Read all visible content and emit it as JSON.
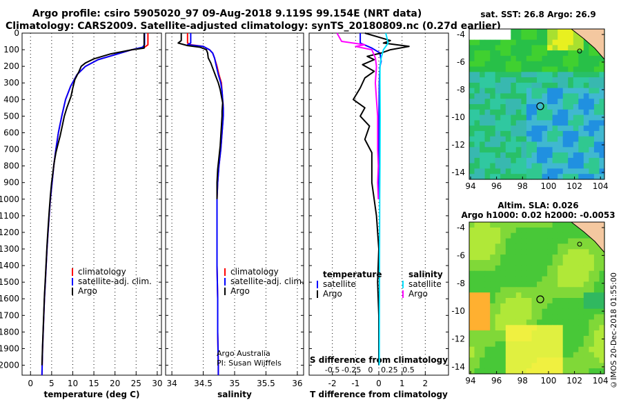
{
  "header": {
    "line1": "Argo profile: csiro 5905020_97 09-Aug-2018 9.119S 99.154E (NRT data)",
    "line2": "Climatology: CARS2009. Satellite-adjusted climatology: synTS_20180809.nc (0.27d earlier)"
  },
  "maps": {
    "sst_title": "sat. SST: 26.8 Argo: 26.9",
    "sla_title1": "Altim. SLA: 0.026",
    "sla_title2": "Argo h1000: 0.02 h2000: -0.0053",
    "lon_ticks": [
      "94",
      "96",
      "98",
      "100",
      "102",
      "104"
    ],
    "lat_ticks": [
      "-4",
      "-6",
      "-8",
      "-10",
      "-12",
      "-14"
    ]
  },
  "stamp": "©IMOS 20-Dec-2018 01:55:00",
  "credits": {
    "line1": "Argo Australia",
    "line2": "PI: Susan Wijffels"
  },
  "chart_data": [
    {
      "type": "line",
      "name": "temperature",
      "xlabel": "temperature (deg C)",
      "ylabel": "",
      "xlim": [
        -2,
        31
      ],
      "ylim": [
        2060,
        0
      ],
      "xticks": [
        0,
        5,
        10,
        15,
        20,
        25,
        30
      ],
      "yticks": [
        0,
        100,
        200,
        300,
        400,
        500,
        600,
        700,
        800,
        900,
        1000,
        1100,
        1200,
        1300,
        1400,
        1500,
        1600,
        1700,
        1800,
        1900,
        2000
      ],
      "legend": [
        "climatology",
        "satellite-adj. clim.",
        "Argo"
      ],
      "series": [
        {
          "name": "climatology",
          "color": "#ff0000",
          "points": [
            [
              27.8,
              0
            ],
            [
              27.8,
              70
            ],
            [
              27,
              85
            ],
            [
              24,
              100
            ],
            [
              20,
              130
            ],
            [
              16,
              160
            ],
            [
              13,
              200
            ],
            [
              11,
              250
            ],
            [
              9.5,
              320
            ],
            [
              8.3,
              400
            ],
            [
              7.4,
              500
            ],
            [
              6.6,
              600
            ],
            [
              6,
              700
            ],
            [
              5.5,
              800
            ],
            [
              5.1,
              900
            ],
            [
              4.7,
              1000
            ],
            [
              4.4,
              1100
            ],
            [
              4.15,
              1200
            ],
            [
              3.9,
              1300
            ],
            [
              3.7,
              1400
            ],
            [
              3.5,
              1500
            ],
            [
              3.3,
              1600
            ],
            [
              3.15,
              1700
            ],
            [
              3,
              1800
            ],
            [
              2.85,
              1900
            ],
            [
              2.75,
              2000
            ],
            [
              2.7,
              2060
            ]
          ]
        },
        {
          "name": "satellite-adj. clim.",
          "color": "#0000ff",
          "points": [
            [
              27,
              0
            ],
            [
              27,
              70
            ],
            [
              26.5,
              85
            ],
            [
              24,
              100
            ],
            [
              20,
              130
            ],
            [
              16,
              160
            ],
            [
              13,
              200
            ],
            [
              11,
              250
            ],
            [
              9.5,
              320
            ],
            [
              8.3,
              400
            ],
            [
              7.4,
              500
            ],
            [
              6.6,
              600
            ],
            [
              6,
              700
            ],
            [
              5.5,
              800
            ],
            [
              5.1,
              900
            ],
            [
              4.7,
              1000
            ],
            [
              4.4,
              1100
            ],
            [
              4.15,
              1200
            ],
            [
              3.9,
              1300
            ],
            [
              3.7,
              1400
            ],
            [
              3.5,
              1500
            ],
            [
              3.3,
              1600
            ],
            [
              3.15,
              1700
            ],
            [
              3,
              1800
            ],
            [
              2.85,
              1900
            ],
            [
              2.75,
              2000
            ],
            [
              2.7,
              2060
            ]
          ]
        },
        {
          "name": "Argo",
          "color": "#000000",
          "points": [
            [
              26.9,
              0
            ],
            [
              26.9,
              90
            ],
            [
              24,
              100
            ],
            [
              19,
              125
            ],
            [
              15,
              155
            ],
            [
              13,
              180
            ],
            [
              12,
              200
            ],
            [
              11.5,
              230
            ],
            [
              10.5,
              280
            ],
            [
              10,
              330
            ],
            [
              9.6,
              380
            ],
            [
              8.6,
              450
            ],
            [
              8,
              500
            ],
            [
              7.5,
              560
            ],
            [
              7,
              620
            ],
            [
              6.6,
              660
            ],
            [
              6,
              720
            ],
            [
              5.6,
              780
            ],
            [
              5.3,
              840
            ],
            [
              5,
              900
            ],
            [
              4.7,
              980
            ],
            [
              4.4,
              1080
            ],
            [
              4.15,
              1180
            ],
            [
              3.9,
              1280
            ],
            [
              3.7,
              1380
            ],
            [
              3.5,
              1480
            ],
            [
              3.3,
              1580
            ],
            [
              3.15,
              1680
            ],
            [
              3,
              1780
            ],
            [
              2.85,
              1880
            ],
            [
              2.75,
              1960
            ],
            [
              2.7,
              2000
            ]
          ]
        }
      ]
    },
    {
      "type": "line",
      "name": "salinity",
      "xlabel": "salinity",
      "ylabel": "",
      "xlim": [
        33.9,
        36.1
      ],
      "ylim": [
        2060,
        0
      ],
      "xticks": [
        34,
        34.5,
        35,
        35.5,
        36
      ],
      "xticklabels": [
        "34",
        "34.5",
        "35",
        "35.5",
        "36"
      ],
      "legend": [
        "climatology",
        "satellite-adj. clim.",
        "Argo"
      ],
      "series": [
        {
          "name": "climatology",
          "color": "#ff0000",
          "points": [
            [
              34.25,
              0
            ],
            [
              34.25,
              60
            ],
            [
              34.3,
              70
            ],
            [
              34.5,
              80
            ],
            [
              34.6,
              100
            ],
            [
              34.65,
              120
            ],
            [
              34.68,
              150
            ],
            [
              34.72,
              200
            ],
            [
              34.75,
              250
            ],
            [
              34.79,
              300
            ],
            [
              34.8,
              350
            ],
            [
              34.81,
              400
            ],
            [
              34.82,
              450
            ],
            [
              34.82,
              500
            ],
            [
              34.8,
              600
            ],
            [
              34.78,
              700
            ],
            [
              34.75,
              800
            ],
            [
              34.73,
              900
            ],
            [
              34.72,
              1000
            ],
            [
              34.72,
              1200
            ],
            [
              34.72,
              1400
            ],
            [
              34.73,
              1600
            ],
            [
              34.73,
              1800
            ],
            [
              34.74,
              2000
            ],
            [
              34.74,
              2060
            ]
          ]
        },
        {
          "name": "satellite-adj. clim.",
          "color": "#0000ff",
          "points": [
            [
              34.3,
              0
            ],
            [
              34.3,
              60
            ],
            [
              34.25,
              70
            ],
            [
              34.5,
              80
            ],
            [
              34.6,
              100
            ],
            [
              34.65,
              120
            ],
            [
              34.68,
              150
            ],
            [
              34.71,
              200
            ],
            [
              34.74,
              250
            ],
            [
              34.78,
              300
            ],
            [
              34.8,
              350
            ],
            [
              34.81,
              400
            ],
            [
              34.82,
              450
            ],
            [
              34.82,
              500
            ],
            [
              34.8,
              600
            ],
            [
              34.78,
              700
            ],
            [
              34.75,
              800
            ],
            [
              34.73,
              900
            ],
            [
              34.72,
              1000
            ],
            [
              34.72,
              1200
            ],
            [
              34.72,
              1400
            ],
            [
              34.73,
              1600
            ],
            [
              34.73,
              1800
            ],
            [
              34.74,
              2000
            ],
            [
              34.74,
              2060
            ]
          ]
        },
        {
          "name": "Argo",
          "color": "#000000",
          "points": [
            [
              34.15,
              0
            ],
            [
              34.15,
              45
            ],
            [
              34.1,
              60
            ],
            [
              34.25,
              75
            ],
            [
              34.45,
              85
            ],
            [
              34.55,
              100
            ],
            [
              34.57,
              120
            ],
            [
              34.58,
              150
            ],
            [
              34.62,
              180
            ],
            [
              34.64,
              200
            ],
            [
              34.67,
              230
            ],
            [
              34.7,
              260
            ],
            [
              34.74,
              300
            ],
            [
              34.77,
              340
            ],
            [
              34.79,
              380
            ],
            [
              34.81,
              420
            ],
            [
              34.8,
              470
            ],
            [
              34.8,
              500
            ],
            [
              34.79,
              560
            ],
            [
              34.78,
              620
            ],
            [
              34.77,
              680
            ],
            [
              34.75,
              750
            ],
            [
              34.73,
              820
            ],
            [
              34.72,
              900
            ],
            [
              34.72,
              1000
            ]
          ]
        }
      ]
    },
    {
      "type": "line",
      "name": "difference",
      "xlabel": "T difference from climatology",
      "xlabel_top": "S difference from climatology",
      "xlim": [
        -3,
        3
      ],
      "ylim": [
        2060,
        0
      ],
      "xticks": [
        -2,
        -1,
        0,
        1,
        2
      ],
      "xticks_s": [
        -0.5,
        -0.25,
        0,
        0.25,
        0.5
      ],
      "xticklabels_s": [
        "-0.5",
        "-0.25",
        "0",
        "0.25",
        "0.5"
      ],
      "legend_t_title": "temperature",
      "legend_s_title": "salinity",
      "legend": [
        "satellite",
        "Argo",
        "satellite",
        "Argo"
      ],
      "series": [
        {
          "name": "T satellite",
          "color": "#0000ff",
          "points": [
            [
              -0.8,
              0
            ],
            [
              -0.8,
              60
            ],
            [
              -0.3,
              90
            ],
            [
              0.05,
              120
            ],
            [
              0.1,
              170
            ],
            [
              0.05,
              200
            ],
            [
              0.02,
              300
            ],
            [
              0.01,
              500
            ],
            [
              0,
              800
            ],
            [
              0,
              1000
            ]
          ]
        },
        {
          "name": "T Argo",
          "color": "#000000",
          "points": [
            [
              -0.6,
              0
            ],
            [
              0.5,
              45
            ],
            [
              0.2,
              60
            ],
            [
              1.3,
              80
            ],
            [
              0.5,
              100
            ],
            [
              0.1,
              120
            ],
            [
              -0.5,
              140
            ],
            [
              -0.2,
              160
            ],
            [
              -0.7,
              190
            ],
            [
              -0.2,
              230
            ],
            [
              -0.6,
              270
            ],
            [
              -0.8,
              330
            ],
            [
              -1.1,
              400
            ],
            [
              -0.6,
              450
            ],
            [
              -0.8,
              500
            ],
            [
              -0.4,
              560
            ],
            [
              -0.6,
              640
            ],
            [
              -0.3,
              720
            ],
            [
              -0.3,
              900
            ],
            [
              -0.1,
              1100
            ],
            [
              0,
              1300
            ],
            [
              -0.05,
              1500
            ],
            [
              0,
              1700
            ],
            [
              0,
              2000
            ]
          ]
        },
        {
          "name": "S satellite",
          "color": "#00e0ff",
          "points": [
            [
              0.3,
              0
            ],
            [
              0.4,
              60
            ],
            [
              0.3,
              80
            ],
            [
              0.2,
              100
            ],
            [
              0.1,
              150
            ],
            [
              0.05,
              200
            ],
            [
              0.05,
              300
            ],
            [
              0.06,
              500
            ],
            [
              0.05,
              800
            ],
            [
              0.04,
              1000
            ],
            [
              0.03,
              1400
            ],
            [
              0.02,
              2000
            ]
          ]
        },
        {
          "name": "S Argo",
          "color": "#ff00ff",
          "points": [
            [
              -1.8,
              0
            ],
            [
              -1.6,
              50
            ],
            [
              -0.6,
              70
            ],
            [
              -1,
              80
            ],
            [
              -0.3,
              100
            ],
            [
              -0.15,
              150
            ],
            [
              -0.1,
              200
            ],
            [
              -0.15,
              300
            ],
            [
              -0.1,
              400
            ],
            [
              -0.05,
              500
            ],
            [
              -0.05,
              700
            ],
            [
              -0.02,
              800
            ],
            [
              -0.05,
              900
            ],
            [
              -0.02,
              1000
            ]
          ]
        }
      ]
    }
  ]
}
